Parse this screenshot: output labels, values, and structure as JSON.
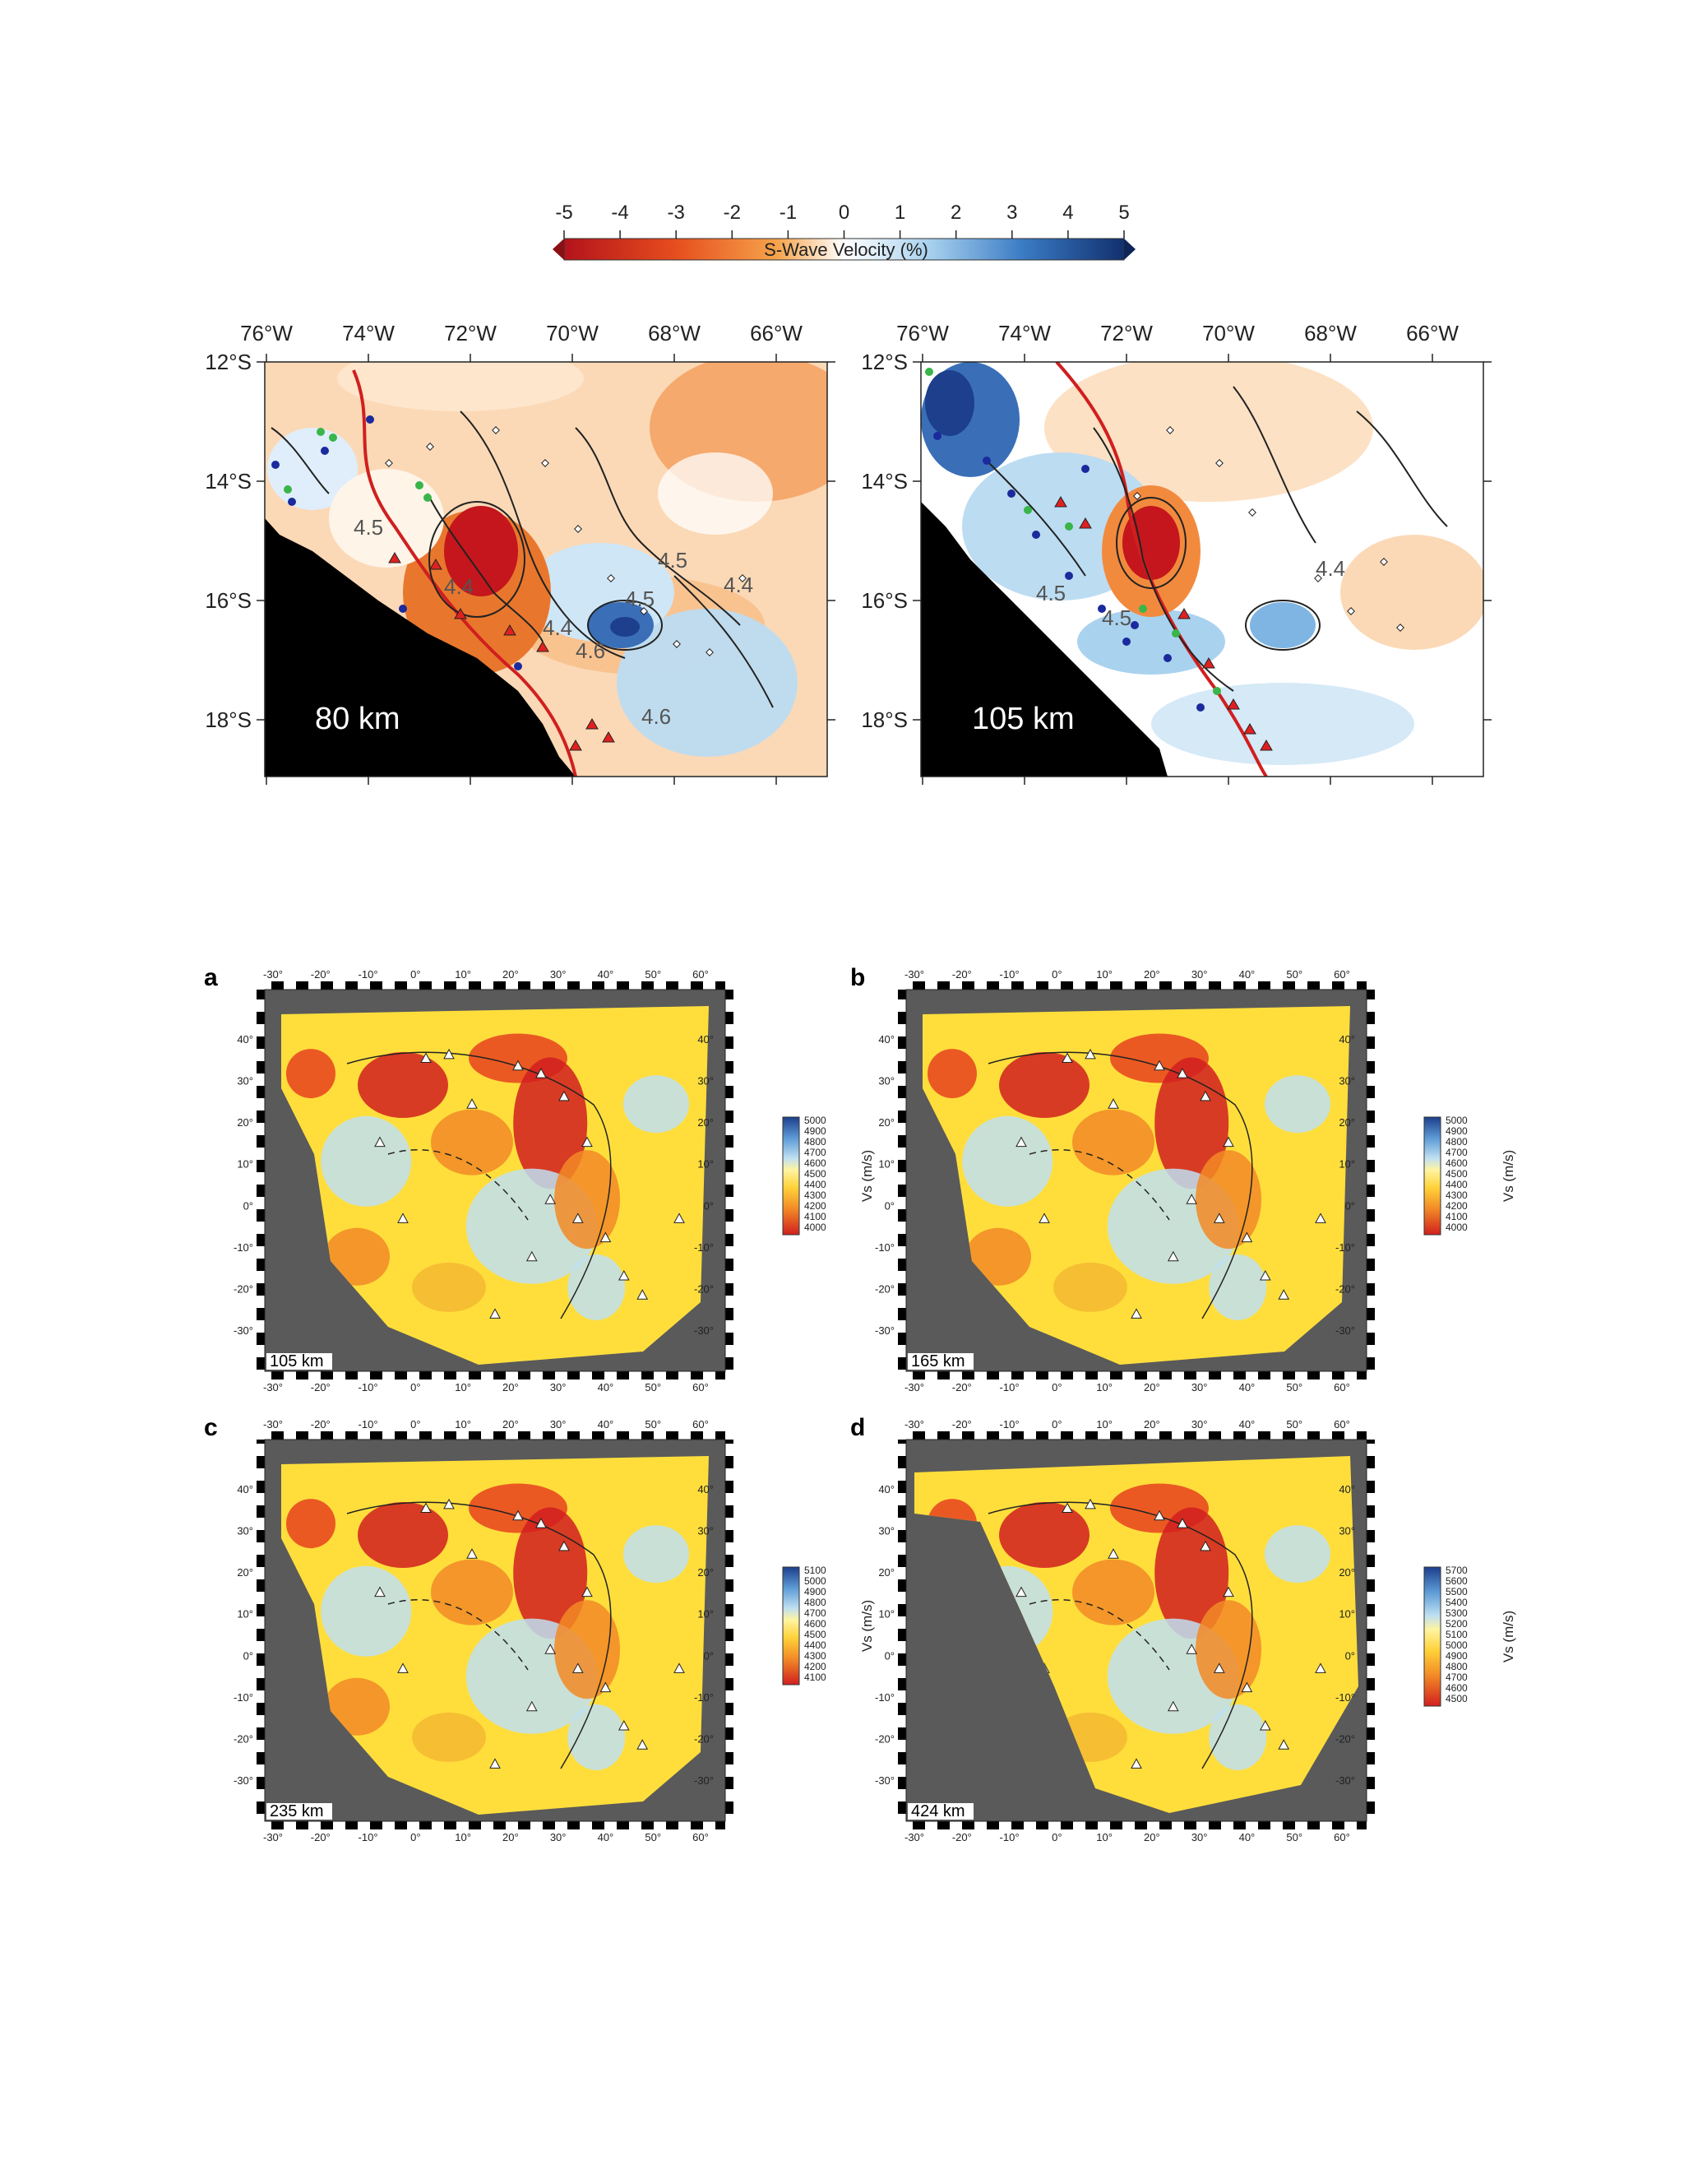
{
  "colorbar_top": {
    "label": "S-Wave Velocity (%)",
    "ticks": [
      "-5",
      "-4",
      "-3",
      "-2",
      "-1",
      "0",
      "1",
      "2",
      "3",
      "4",
      "5"
    ]
  },
  "peru_maps": {
    "lon_ticks": [
      "76°W",
      "74°W",
      "72°W",
      "70°W",
      "68°W",
      "66°W"
    ],
    "lat_ticks": [
      "12°S",
      "14°S",
      "16°S",
      "18°S"
    ],
    "panels": [
      {
        "depth": "80 km",
        "contour_labels": [
          "4.5",
          "4.4",
          "4.4",
          "4.5",
          "4.6",
          "4.4",
          "4.5",
          "4.6"
        ]
      },
      {
        "depth": "105 km",
        "contour_labels": [
          "4.5",
          "4.5",
          "4.4"
        ]
      }
    ]
  },
  "africa_maps": {
    "lon_ticks": [
      "-30°",
      "-20°",
      "-10°",
      "0°",
      "10°",
      "20°",
      "30°",
      "40°",
      "50°",
      "60°"
    ],
    "lat_ticks": [
      "40°",
      "30°",
      "20°",
      "10°",
      "0°",
      "-10°",
      "-20°",
      "-30°"
    ],
    "colorbar_unit": "Vs (m/s)",
    "panels": [
      {
        "letter": "a",
        "depth": "105 km",
        "scale": [
          "5000",
          "4900",
          "4800",
          "4700",
          "4600",
          "4500",
          "4400",
          "4300",
          "4200",
          "4100",
          "4000"
        ]
      },
      {
        "letter": "b",
        "depth": "165 km",
        "scale": [
          "5000",
          "4900",
          "4800",
          "4700",
          "4600",
          "4500",
          "4400",
          "4300",
          "4200",
          "4100",
          "4000"
        ]
      },
      {
        "letter": "c",
        "depth": "235 km",
        "scale": [
          "5100",
          "5000",
          "4900",
          "4800",
          "4700",
          "4600",
          "4500",
          "4400",
          "4300",
          "4200",
          "4100"
        ]
      },
      {
        "letter": "d",
        "depth": "424 km",
        "scale": [
          "5700",
          "5600",
          "5500",
          "5400",
          "5300",
          "5200",
          "5100",
          "5000",
          "4900",
          "4800",
          "4700",
          "4600",
          "4500"
        ]
      }
    ]
  },
  "colors": {
    "slow_red": "#c4161c",
    "fast_blue": "#1d3f8c",
    "neutral": "#ffffff",
    "yellow": "#ffde3c",
    "land_mask": "#000000",
    "ocean_mask": "#5a5a5a"
  }
}
